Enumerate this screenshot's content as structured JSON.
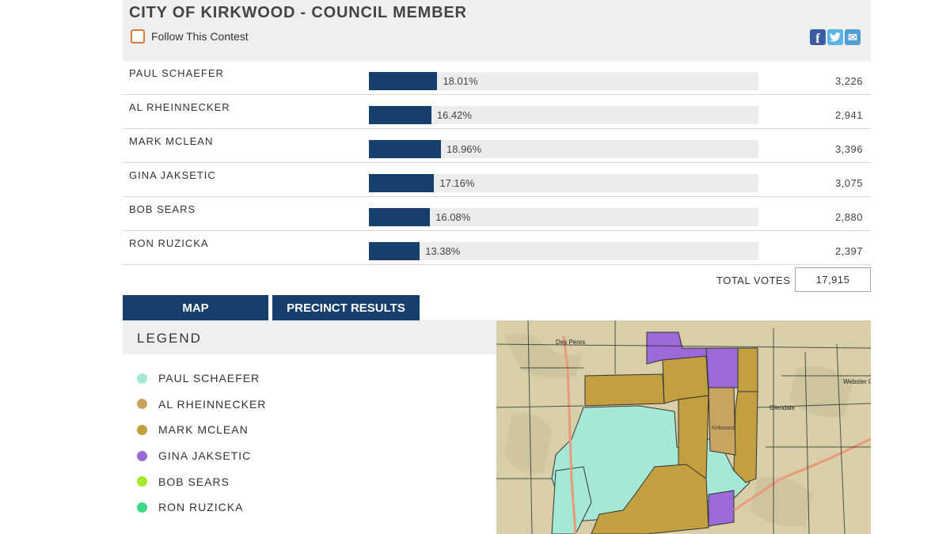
{
  "contest": {
    "title": "CITY OF KIRKWOOD - COUNCIL MEMBER",
    "follow_label": "Follow This Contest",
    "share": {
      "facebook": "f",
      "twitter": "t",
      "email": "✉"
    }
  },
  "candidates": [
    {
      "name": "PAUL SCHAEFER",
      "pct_label": "18.01%",
      "pct": 18.01,
      "votes": "3,226",
      "color": "#a6e8d6"
    },
    {
      "name": "AL RHEINNECKER",
      "pct_label": "16.42%",
      "pct": 16.42,
      "votes": "2,941",
      "color": "#c9a45e"
    },
    {
      "name": "MARK MCLEAN",
      "pct_label": "18.96%",
      "pct": 18.96,
      "votes": "3,396",
      "color": "#c2a040"
    },
    {
      "name": "GINA JAKSETIC",
      "pct_label": "17.16%",
      "pct": 17.16,
      "votes": "3,075",
      "color": "#9b6ad8"
    },
    {
      "name": "BOB SEARS",
      "pct_label": "16.08%",
      "pct": 16.08,
      "votes": "2,880",
      "color": "#a6e82a"
    },
    {
      "name": "RON RUZICKA",
      "pct_label": "13.38%",
      "pct": 13.38,
      "votes": "2,397",
      "color": "#3ed883"
    }
  ],
  "totals": {
    "label": "TOTAL VOTES",
    "value": "17,915"
  },
  "tabs": {
    "map": "MAP",
    "precinct": "PRECINCT RESULTS"
  },
  "legend": {
    "title": "LEGEND"
  },
  "map": {
    "labels": {
      "des_peres": "Des Peres",
      "glendale": "Glendale",
      "webster": "Webster Grov",
      "kirkwood": "Kirkwood"
    },
    "colors": {
      "base": "#d8cfa8",
      "road": "#e89a7a",
      "schaefer": "#a6e8d6",
      "mclean": "#c2a040",
      "rheinnecker": "#c9a45e",
      "jaksetic": "#9b6ad8"
    }
  }
}
